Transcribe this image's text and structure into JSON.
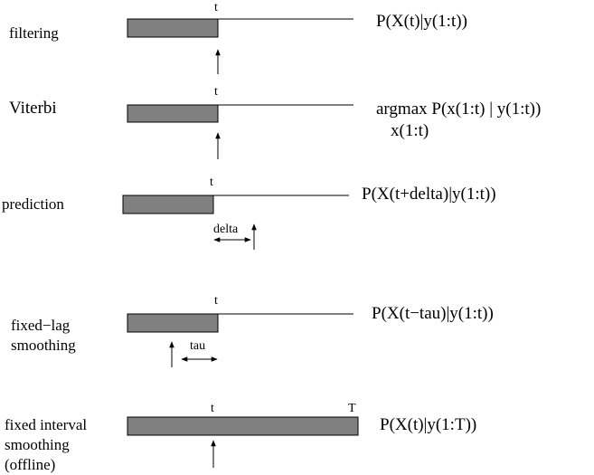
{
  "rows": [
    {
      "label_lines": [
        "filtering"
      ],
      "formula_lines": [
        "P(X(t)|y(1:t))"
      ],
      "tick_labels": [
        "t"
      ]
    },
    {
      "label_lines": [
        "Viterbi"
      ],
      "formula_lines": [
        "argmax P(x(1:t) | y(1:t))",
        "x(1:t)"
      ],
      "tick_labels": [
        "t"
      ]
    },
    {
      "label_lines": [
        "prediction"
      ],
      "formula_lines": [
        "P(X(t+delta)|y(1:t))"
      ],
      "tick_labels": [
        "t"
      ],
      "span_label": "delta"
    },
    {
      "label_lines": [
        "fixed−lag",
        "smoothing"
      ],
      "formula_lines": [
        "P(X(t−tau)|y(1:t))"
      ],
      "tick_labels": [
        "t"
      ],
      "span_label": "tau"
    },
    {
      "label_lines": [
        "fixed interval",
        "smoothing",
        "(offline)"
      ],
      "formula_lines": [
        "P(X(t)|y(1:T))"
      ],
      "tick_labels": [
        "t",
        "T"
      ]
    }
  ]
}
